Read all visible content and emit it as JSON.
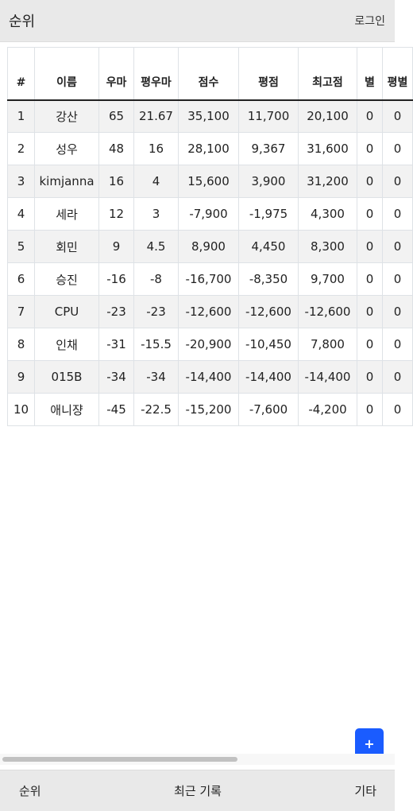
{
  "header": {
    "title": "순위",
    "login_label": "로그인"
  },
  "table": {
    "columns": [
      "#",
      "이름",
      "우마",
      "평우마",
      "점수",
      "평점",
      "최고점",
      "별",
      "평별"
    ],
    "rows": [
      [
        "1",
        "강산",
        "65",
        "21.67",
        "35,100",
        "11,700",
        "20,100",
        "0",
        "0"
      ],
      [
        "2",
        "성우",
        "48",
        "16",
        "28,100",
        "9,367",
        "31,600",
        "0",
        "0"
      ],
      [
        "3",
        "kimjanna",
        "16",
        "4",
        "15,600",
        "3,900",
        "31,200",
        "0",
        "0"
      ],
      [
        "4",
        "세라",
        "12",
        "3",
        "-7,900",
        "-1,975",
        "4,300",
        "0",
        "0"
      ],
      [
        "5",
        "회민",
        "9",
        "4.5",
        "8,900",
        "4,450",
        "8,300",
        "0",
        "0"
      ],
      [
        "6",
        "승진",
        "-16",
        "-8",
        "-16,700",
        "-8,350",
        "9,700",
        "0",
        "0"
      ],
      [
        "7",
        "CPU",
        "-23",
        "-23",
        "-12,600",
        "-12,600",
        "-12,600",
        "0",
        "0"
      ],
      [
        "8",
        "인채",
        "-31",
        "-15.5",
        "-20,900",
        "-10,450",
        "7,800",
        "0",
        "0"
      ],
      [
        "9",
        "015B",
        "-34",
        "-34",
        "-14,400",
        "-14,400",
        "-14,400",
        "0",
        "0"
      ],
      [
        "10",
        "애니쟝",
        "-45",
        "-22.5",
        "-15,200",
        "-7,600",
        "-4,200",
        "0",
        "0"
      ]
    ]
  },
  "fab": {
    "label": "+",
    "color": "#1a5cff"
  },
  "bottom_nav": {
    "ranking": "순위",
    "recent": "최근 기록",
    "etc": "기타"
  }
}
